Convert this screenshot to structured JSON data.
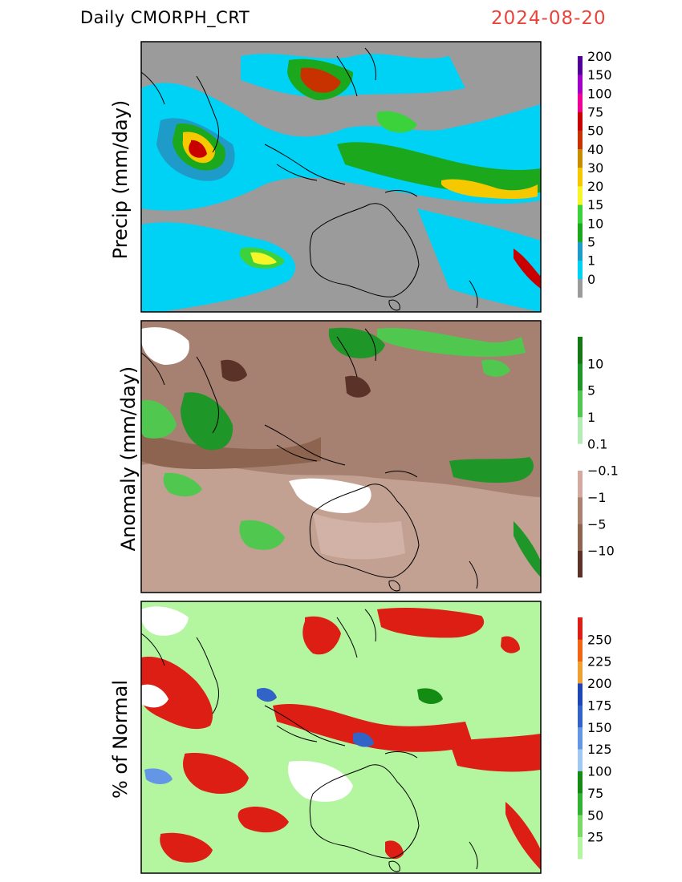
{
  "header": {
    "title": "Daily CMORPH_CRT",
    "date": "2024-08-20"
  },
  "panels": [
    {
      "id": "precip",
      "ylabel": "Precip (mm/day)",
      "legend_labels": [
        "0",
        "1",
        "5",
        "10",
        "15",
        "20",
        "30",
        "40",
        "50",
        "75",
        "100",
        "150",
        "200"
      ],
      "legend_colors": [
        "#9b9b9b",
        "#00d2f5",
        "#1e9bc8",
        "#1ca81c",
        "#3cd23c",
        "#f5f528",
        "#f5c800",
        "#c88c00",
        "#c83200",
        "#c80000",
        "#f00096",
        "#a000c8",
        "#500096"
      ],
      "background": "#9b9b9b"
    },
    {
      "id": "anomaly",
      "ylabel": "Anomaly (mm/day)",
      "legend_labels": [
        "10",
        "5",
        "1",
        "0.1",
        "-0.1",
        "-1",
        "-5",
        "-10"
      ],
      "legend_colors": [
        "#5a3228",
        "#8c6450",
        "#aa8270",
        "#d2aaa0",
        "#ffffff",
        "#b4ebb4",
        "#50c850",
        "#1e9628",
        "#147814"
      ],
      "background": "#a68070"
    },
    {
      "id": "percent",
      "ylabel": "% of Normal",
      "legend_labels": [
        "25",
        "50",
        "75",
        "100",
        "125",
        "150",
        "175",
        "200",
        "225",
        "250"
      ],
      "legend_colors": [
        "#b4f5a0",
        "#78dc64",
        "#32b432",
        "#148c14",
        "#a0c8f0",
        "#6496e6",
        "#3264c8",
        "#1e46b4",
        "#f0a032",
        "#f06414",
        "#dc1e14"
      ],
      "background": "#b4f5a0"
    }
  ]
}
